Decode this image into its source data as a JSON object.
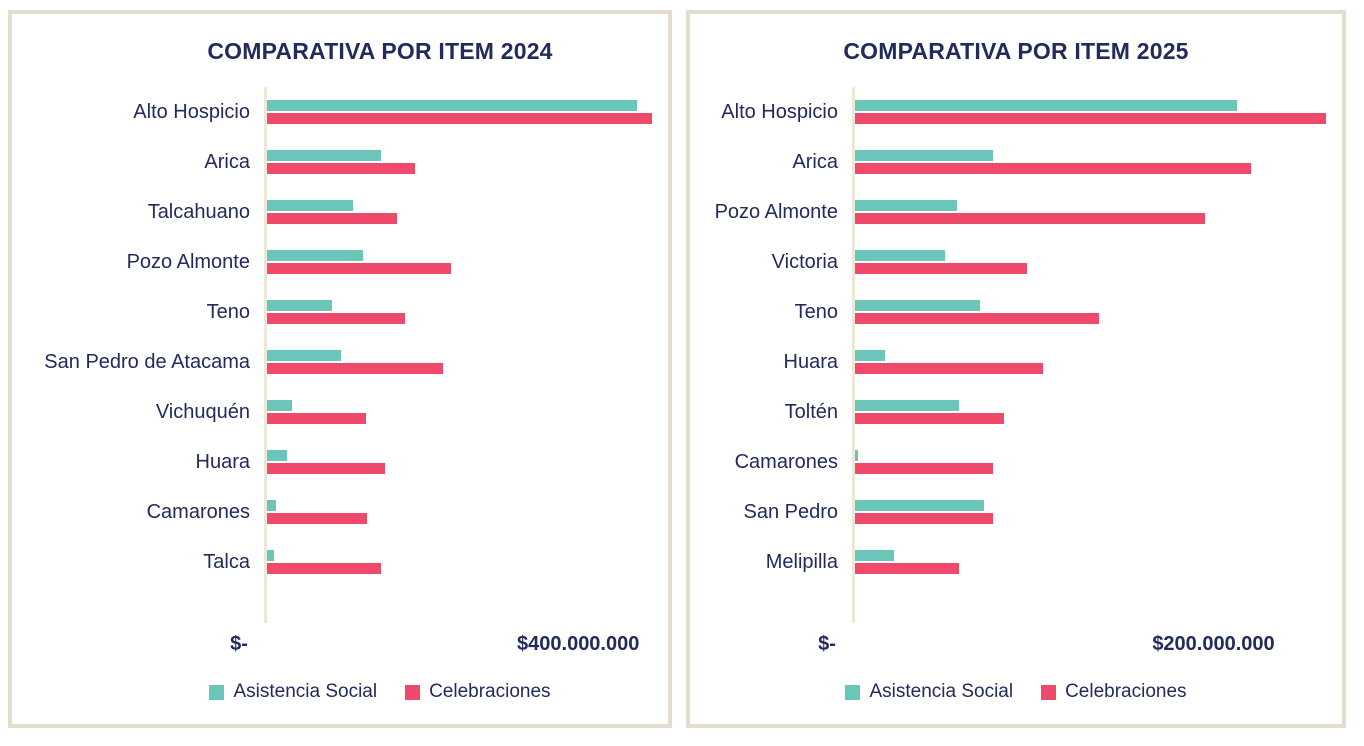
{
  "colors": {
    "asistencia_social": "#6BC6BA",
    "celebraciones": "#EF4A6C",
    "text_navy": "#232A5C",
    "card_border": "#E3DDCB",
    "axis_line": "#EDE7D8"
  },
  "legend": {
    "items": [
      {
        "label": "Asistencia Social",
        "color": "#6BC6BA"
      },
      {
        "label": "Celebraciones",
        "color": "#EF4A6C"
      }
    ]
  },
  "chart_data": [
    {
      "type": "bar",
      "orientation": "horizontal",
      "title": "COMPARATIVA POR ITEM 2024",
      "categories": [
        "Alto Hospicio",
        "Arica",
        "Talcahuano",
        "Pozo Almonte",
        "Teno",
        "San Pedro de Atacama",
        "Vichuquén",
        "Huara",
        "Camarones",
        "Talca"
      ],
      "series": [
        {
          "name": "Asistencia Social",
          "color": "#6BC6BA",
          "values": [
            475000000,
            147000000,
            110000000,
            123000000,
            83000000,
            95000000,
            32000000,
            26000000,
            11000000,
            9000000
          ]
        },
        {
          "name": "Celebraciones",
          "color": "#EF4A6C",
          "values": [
            495000000,
            190000000,
            167000000,
            237000000,
            177000000,
            226000000,
            127000000,
            152000000,
            128000000,
            146000000
          ]
        }
      ],
      "x_axis": {
        "min": 0,
        "max": 500000000,
        "tick_values": [
          0,
          400000000
        ],
        "tick_labels": [
          "$-",
          "$400.000.000"
        ]
      },
      "legend_position": "bottom",
      "grid": false
    },
    {
      "type": "bar",
      "orientation": "horizontal",
      "title": "COMPARATIVA POR ITEM 2025",
      "categories": [
        "Alto Hospicio",
        "Arica",
        "Pozo Almonte",
        "Victoria",
        "Teno",
        "Huara",
        "Toltén",
        "Camarones",
        "San Pedro",
        "Melipilla"
      ],
      "series": [
        {
          "name": "Asistencia Social",
          "color": "#6BC6BA",
          "values": [
            213000000,
            77000000,
            57000000,
            50000000,
            70000000,
            17000000,
            58000000,
            1500000,
            72000000,
            22000000
          ]
        },
        {
          "name": "Celebraciones",
          "color": "#EF4A6C",
          "values": [
            263000000,
            221000000,
            195000000,
            96000000,
            136000000,
            105000000,
            83000000,
            77000000,
            77000000,
            58000000
          ]
        }
      ],
      "x_axis": {
        "min": 0,
        "max": 265000000,
        "tick_values": [
          0,
          200000000
        ],
        "tick_labels": [
          "$-",
          "$200.000.000"
        ]
      },
      "legend_position": "bottom",
      "grid": false
    }
  ]
}
